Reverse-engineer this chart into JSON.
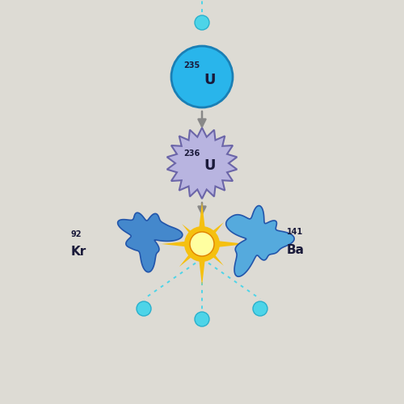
{
  "bg_color": "#dddbd4",
  "neutron_color": "#4dd4e8",
  "neutron_outline": "#2ab0cc",
  "u235_color": "#29b5eb",
  "u235_outline": "#1a7fb5",
  "u235_label": "235",
  "u235_symbol": "U",
  "u236_color": "#b8b4e0",
  "u236_outline": "#6b65a8",
  "u236_label": "236",
  "u236_symbol": "U",
  "kr_color": "#4488cc",
  "kr_outline": "#2255aa",
  "ba_color": "#55aadd",
  "ba_outline": "#2255aa",
  "kr_label": "92",
  "kr_symbol": "Kr",
  "ba_label": "141",
  "ba_symbol": "Ba",
  "arrow_color": "#888888",
  "neutron_line_color": "#4dd4e8",
  "explosion_color1": "#f5c010",
  "explosion_color2": "#e08000",
  "label_color": "#1a1a3a",
  "title": ""
}
